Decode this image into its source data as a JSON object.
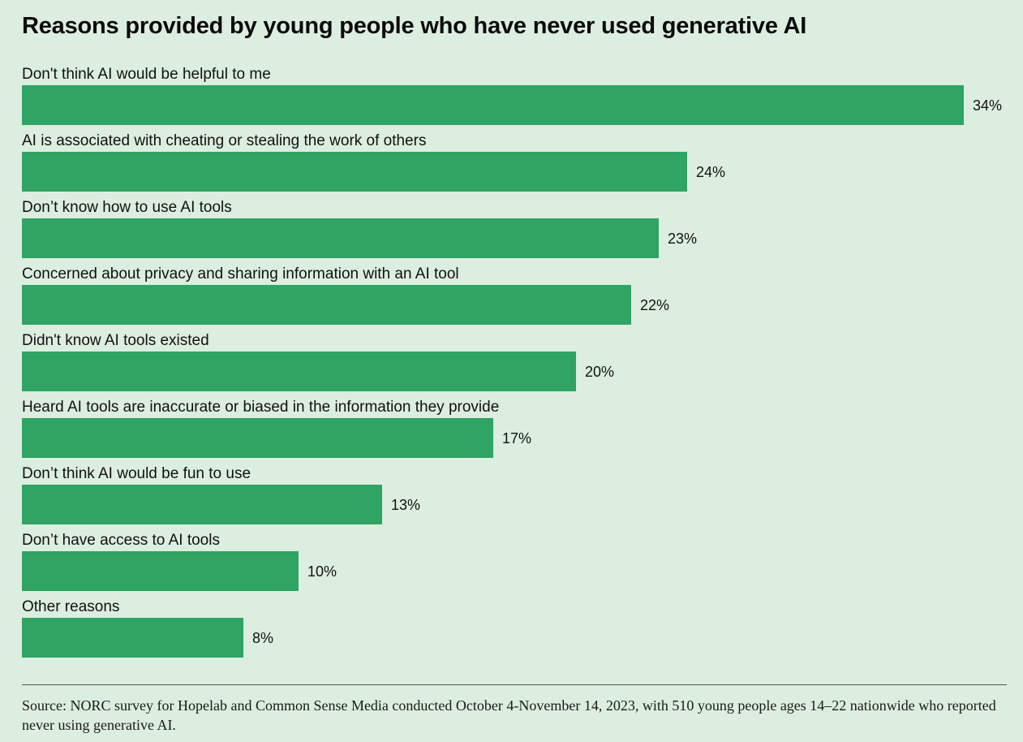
{
  "chart_data": {
    "type": "bar",
    "orientation": "horizontal",
    "title": "Reasons provided by young people who have never used generative AI",
    "categories": [
      "Don't think AI would be helpful to me",
      "AI is associated with cheating or stealing the work of others",
      "Don’t know how to use AI tools",
      "Concerned about privacy and sharing information with an AI tool",
      "Didn't know AI tools existed",
      "Heard AI tools are inaccurate or biased in the information they provide",
      "Don’t think AI would be fun to use",
      "Don’t have access to AI tools",
      "Other reasons"
    ],
    "values": [
      34,
      24,
      23,
      22,
      20,
      17,
      13,
      10,
      8
    ],
    "value_labels": [
      "34%",
      "24%",
      "23%",
      "22%",
      "20%",
      "17%",
      "13%",
      "10%",
      "8%"
    ],
    "xlim": [
      0,
      34
    ],
    "grid": false,
    "bar_color": "#2fa463",
    "source": "Source: NORC survey for Hopelab and Common Sense Media conducted October 4-November 14, 2023, with 510 young people ages 14–22 nationwide who reported never using generative AI."
  },
  "colors": {
    "background": "#dceee0",
    "bar": "#2fa463",
    "text": "#111111"
  }
}
